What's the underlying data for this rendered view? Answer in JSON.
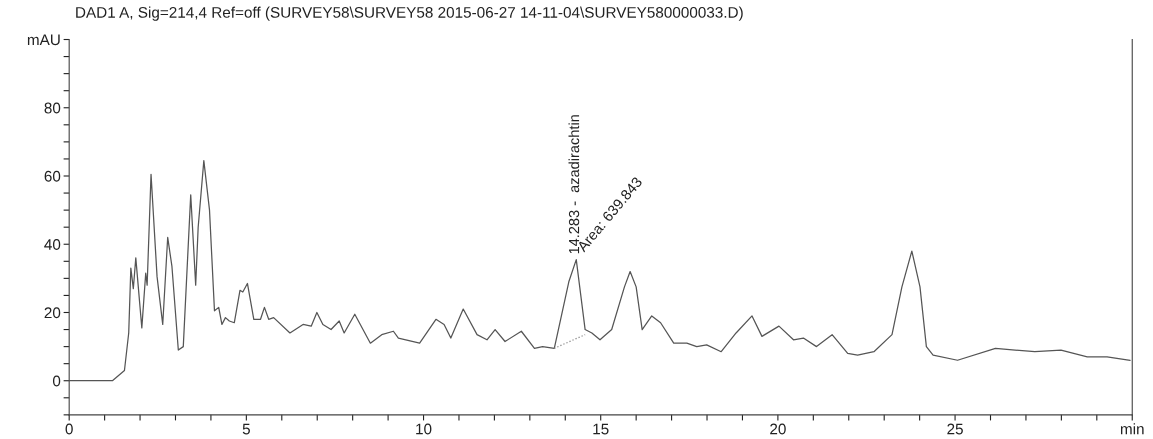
{
  "chart_data": {
    "type": "line",
    "title": "DAD1 A, Sig=214,4 Ref=off (SURVEY58\\SURVEY58 2015-06-27 14-11-04\\SURVEY580000033.D)",
    "series": [
      {
        "color": "#555555",
        "line_style": "solid",
        "x": [
          0,
          1.22,
          1.56,
          1.68,
          1.74,
          1.81,
          1.88,
          2.05,
          2.16,
          2.2,
          2.31,
          2.48,
          2.64,
          2.78,
          2.9,
          3.08,
          3.22,
          3.43,
          3.57,
          3.64,
          3.8,
          3.96,
          4.1,
          4.22,
          4.31,
          4.41,
          4.52,
          4.66,
          4.82,
          4.9,
          5.03,
          5.21,
          5.4,
          5.51,
          5.63,
          5.77,
          6.23,
          6.6,
          6.83,
          6.99,
          7.16,
          7.39,
          7.62,
          7.76,
          8.06,
          8.5,
          8.82,
          9.15,
          9.29,
          9.89,
          10.35,
          10.58,
          10.77,
          11.12,
          11.51,
          11.79,
          12.02,
          12.3,
          12.76,
          13.13,
          13.36,
          13.69,
          14.1,
          14.31,
          14.56,
          14.75,
          14.98,
          15.31,
          15.67,
          15.83,
          16.0,
          16.17,
          16.44,
          16.69,
          17.06,
          17.43,
          17.71,
          17.99,
          18.4,
          18.82,
          19.27,
          19.55,
          20.03,
          20.44,
          20.72,
          21.09,
          21.53,
          21.97,
          22.25,
          22.71,
          23.22,
          23.5,
          23.78,
          24.01,
          24.19,
          24.38,
          25.07,
          26.14,
          27.25,
          27.99,
          28.73,
          29.29,
          29.94
        ],
        "values": [
          0,
          0,
          3,
          14,
          33,
          27,
          36,
          15.5,
          31.5,
          28,
          60.5,
          30.5,
          16.5,
          42,
          33.5,
          9,
          10,
          54.5,
          28,
          45,
          64.5,
          50,
          20.5,
          21.5,
          16.5,
          18.5,
          17.5,
          17,
          26.5,
          26,
          28.5,
          18,
          18,
          21.5,
          18,
          18.5,
          14,
          16.5,
          16,
          20,
          16.5,
          15,
          17.5,
          14,
          19.5,
          11,
          13.5,
          14.5,
          12.5,
          11,
          18,
          16.5,
          12.5,
          21,
          13.5,
          12,
          15,
          11.5,
          14.5,
          9.5,
          10,
          9.5,
          29,
          35.5,
          15,
          14,
          12,
          15,
          27.5,
          32,
          27.5,
          15,
          19,
          17,
          11,
          11,
          10,
          10.5,
          8.5,
          14,
          19,
          13,
          16,
          12,
          12.5,
          10,
          13.5,
          8,
          7.5,
          8.5,
          13.5,
          27.5,
          38,
          27.5,
          10,
          7.5,
          6,
          9.5,
          8.5,
          9,
          7,
          7,
          6
        ]
      },
      {
        "color": "#888888",
        "line_style": "dotted",
        "x": [
          13.69,
          14.56
        ],
        "values": [
          9.5,
          13.5
        ]
      }
    ],
    "xlim": [
      0,
      30
    ],
    "xticks": [
      0,
      {
        "value": 1,
        "label": null
      },
      {
        "value": 2,
        "label": null
      },
      {
        "value": 3,
        "label": null
      },
      {
        "value": 4,
        "label": null
      },
      5,
      {
        "value": 6,
        "label": null
      },
      {
        "value": 7,
        "label": null
      },
      {
        "value": 8,
        "label": null
      },
      {
        "value": 9,
        "label": null
      },
      10,
      {
        "value": 11,
        "label": null
      },
      {
        "value": 12,
        "label": null
      },
      {
        "value": 13,
        "label": null
      },
      {
        "value": 14,
        "label": null
      },
      15,
      {
        "value": 16,
        "label": null
      },
      {
        "value": 17,
        "label": null
      },
      {
        "value": 18,
        "label": null
      },
      {
        "value": 19,
        "label": null
      },
      20,
      {
        "value": 21,
        "label": null
      },
      {
        "value": 22,
        "label": null
      },
      {
        "value": 23,
        "label": null
      },
      {
        "value": 24,
        "label": null
      },
      25,
      {
        "value": 26,
        "label": null
      },
      {
        "value": 27,
        "label": null
      },
      {
        "value": 28,
        "label": null
      },
      {
        "value": 29,
        "label": null
      },
      {
        "value": 30,
        "label": "min"
      }
    ],
    "ylim": [
      -10,
      100
    ],
    "yticks": [
      {
        "value": -10,
        "label": null
      },
      {
        "value": -5,
        "label": null
      },
      0,
      {
        "value": 5,
        "label": null
      },
      {
        "value": 10,
        "label": null
      },
      {
        "value": 15,
        "label": null
      },
      20,
      {
        "value": 25,
        "label": null
      },
      {
        "value": 30,
        "label": null
      },
      {
        "value": 35,
        "label": null
      },
      40,
      {
        "value": 45,
        "label": null
      },
      {
        "value": 50,
        "label": null
      },
      {
        "value": 55,
        "label": null
      },
      60,
      {
        "value": 65,
        "label": null
      },
      {
        "value": 70,
        "label": null
      },
      {
        "value": 75,
        "label": null
      },
      80,
      {
        "value": 85,
        "label": null
      },
      {
        "value": 90,
        "label": null
      },
      {
        "value": 95,
        "label": null
      },
      {
        "value": 100,
        "label": "mAU"
      }
    ],
    "annotations": [
      {
        "text": "14.283 -  azadirachtin",
        "x": 14.283,
        "y": 37
      },
      "Area: 639.843"
    ],
    "grid": false
  }
}
